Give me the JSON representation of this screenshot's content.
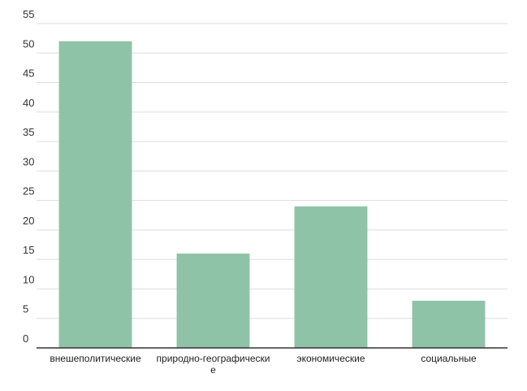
{
  "chart_data": {
    "type": "bar",
    "categories": [
      "внешеполитические",
      "природно-географические",
      "экономические",
      "социальные"
    ],
    "values": [
      52,
      16,
      24,
      8
    ],
    "color": "#8fc3a7",
    "ylim": [
      0,
      55
    ],
    "yticks": [
      0,
      5,
      10,
      15,
      20,
      25,
      30,
      35,
      40,
      45,
      50,
      55
    ],
    "grid": true
  }
}
